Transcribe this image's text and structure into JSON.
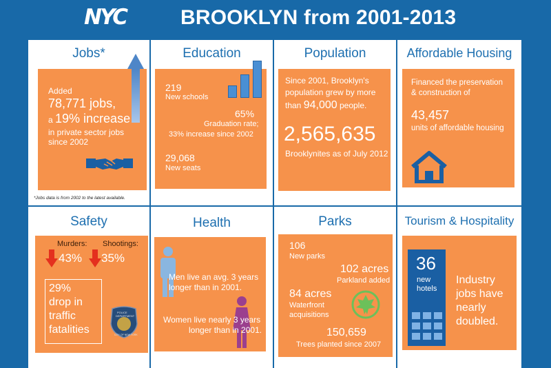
{
  "header": {
    "logo": "NYC",
    "title": "BROOKLYN from 2001-2013"
  },
  "jobs": {
    "title": "Jobs*",
    "line1": "Added",
    "big1": "78,771 jobs,",
    "line2a": "a ",
    "big2": "19% increase",
    "line3": "in private sector jobs",
    "line4": "since 2002",
    "note": "*Jobs data is from 2002 to the latest available."
  },
  "education": {
    "title": "Education",
    "schools_num": "219",
    "schools_label": "New schools",
    "grad_num": "65%",
    "grad_label1": "Graduation rate;",
    "grad_label2": "33% increase since 2002",
    "seats_num": "29,068",
    "seats_label": "New seats"
  },
  "population": {
    "title": "Population",
    "line1": "Since 2001, Brooklyn's",
    "line2": "population grew by more",
    "line3a": "than ",
    "line3b": "94,000",
    "line3c": " people.",
    "big": "2,565,635",
    "label": "Brooklynites as of July 2012"
  },
  "housing": {
    "title": "Affordable Housing",
    "line1": "Financed the preservation",
    "line2": "& construction of",
    "num": "43,457",
    "label": "units of affordable housing"
  },
  "safety": {
    "title": "Safety",
    "murders_label": "Murders:",
    "murders_val": "43%",
    "shootings_label": "Shootings:",
    "shootings_val": "35%",
    "box1": "29%",
    "box2": "drop in",
    "box3": "traffic",
    "box4": "fatalities",
    "badge1": "POLICE",
    "badge2": "DEPARTMENT",
    "badge3": "CITY OF NEW YORK"
  },
  "health": {
    "title": "Health",
    "men1": "Men live an avg. 3 years",
    "men2": "longer than in 2001.",
    "women1": "Women live nearly 3 years",
    "women2": "longer than in 2001."
  },
  "parks": {
    "title": "Parks",
    "new_num": "106",
    "new_label": "New parks",
    "acres_num": "102 acres",
    "acres_label": "Parkland added",
    "water_num": "84 acres",
    "water_label1": "Waterfront",
    "water_label2": "acquisitions",
    "trees_num": "150,659",
    "trees_label": "Trees planted since 2007"
  },
  "tourism": {
    "title": "Tourism & Hospitality",
    "hotels_num": "36",
    "hotels_label1": "new",
    "hotels_label2": "hotels",
    "line1": "Industry",
    "line2": "jobs have",
    "line3": "nearly",
    "line4": "doubled."
  },
  "colors": {
    "background": "#1869a8",
    "orange": "#f6924b",
    "title_blue": "#1d6fb0",
    "icon_blue": "#1a5fa3"
  }
}
